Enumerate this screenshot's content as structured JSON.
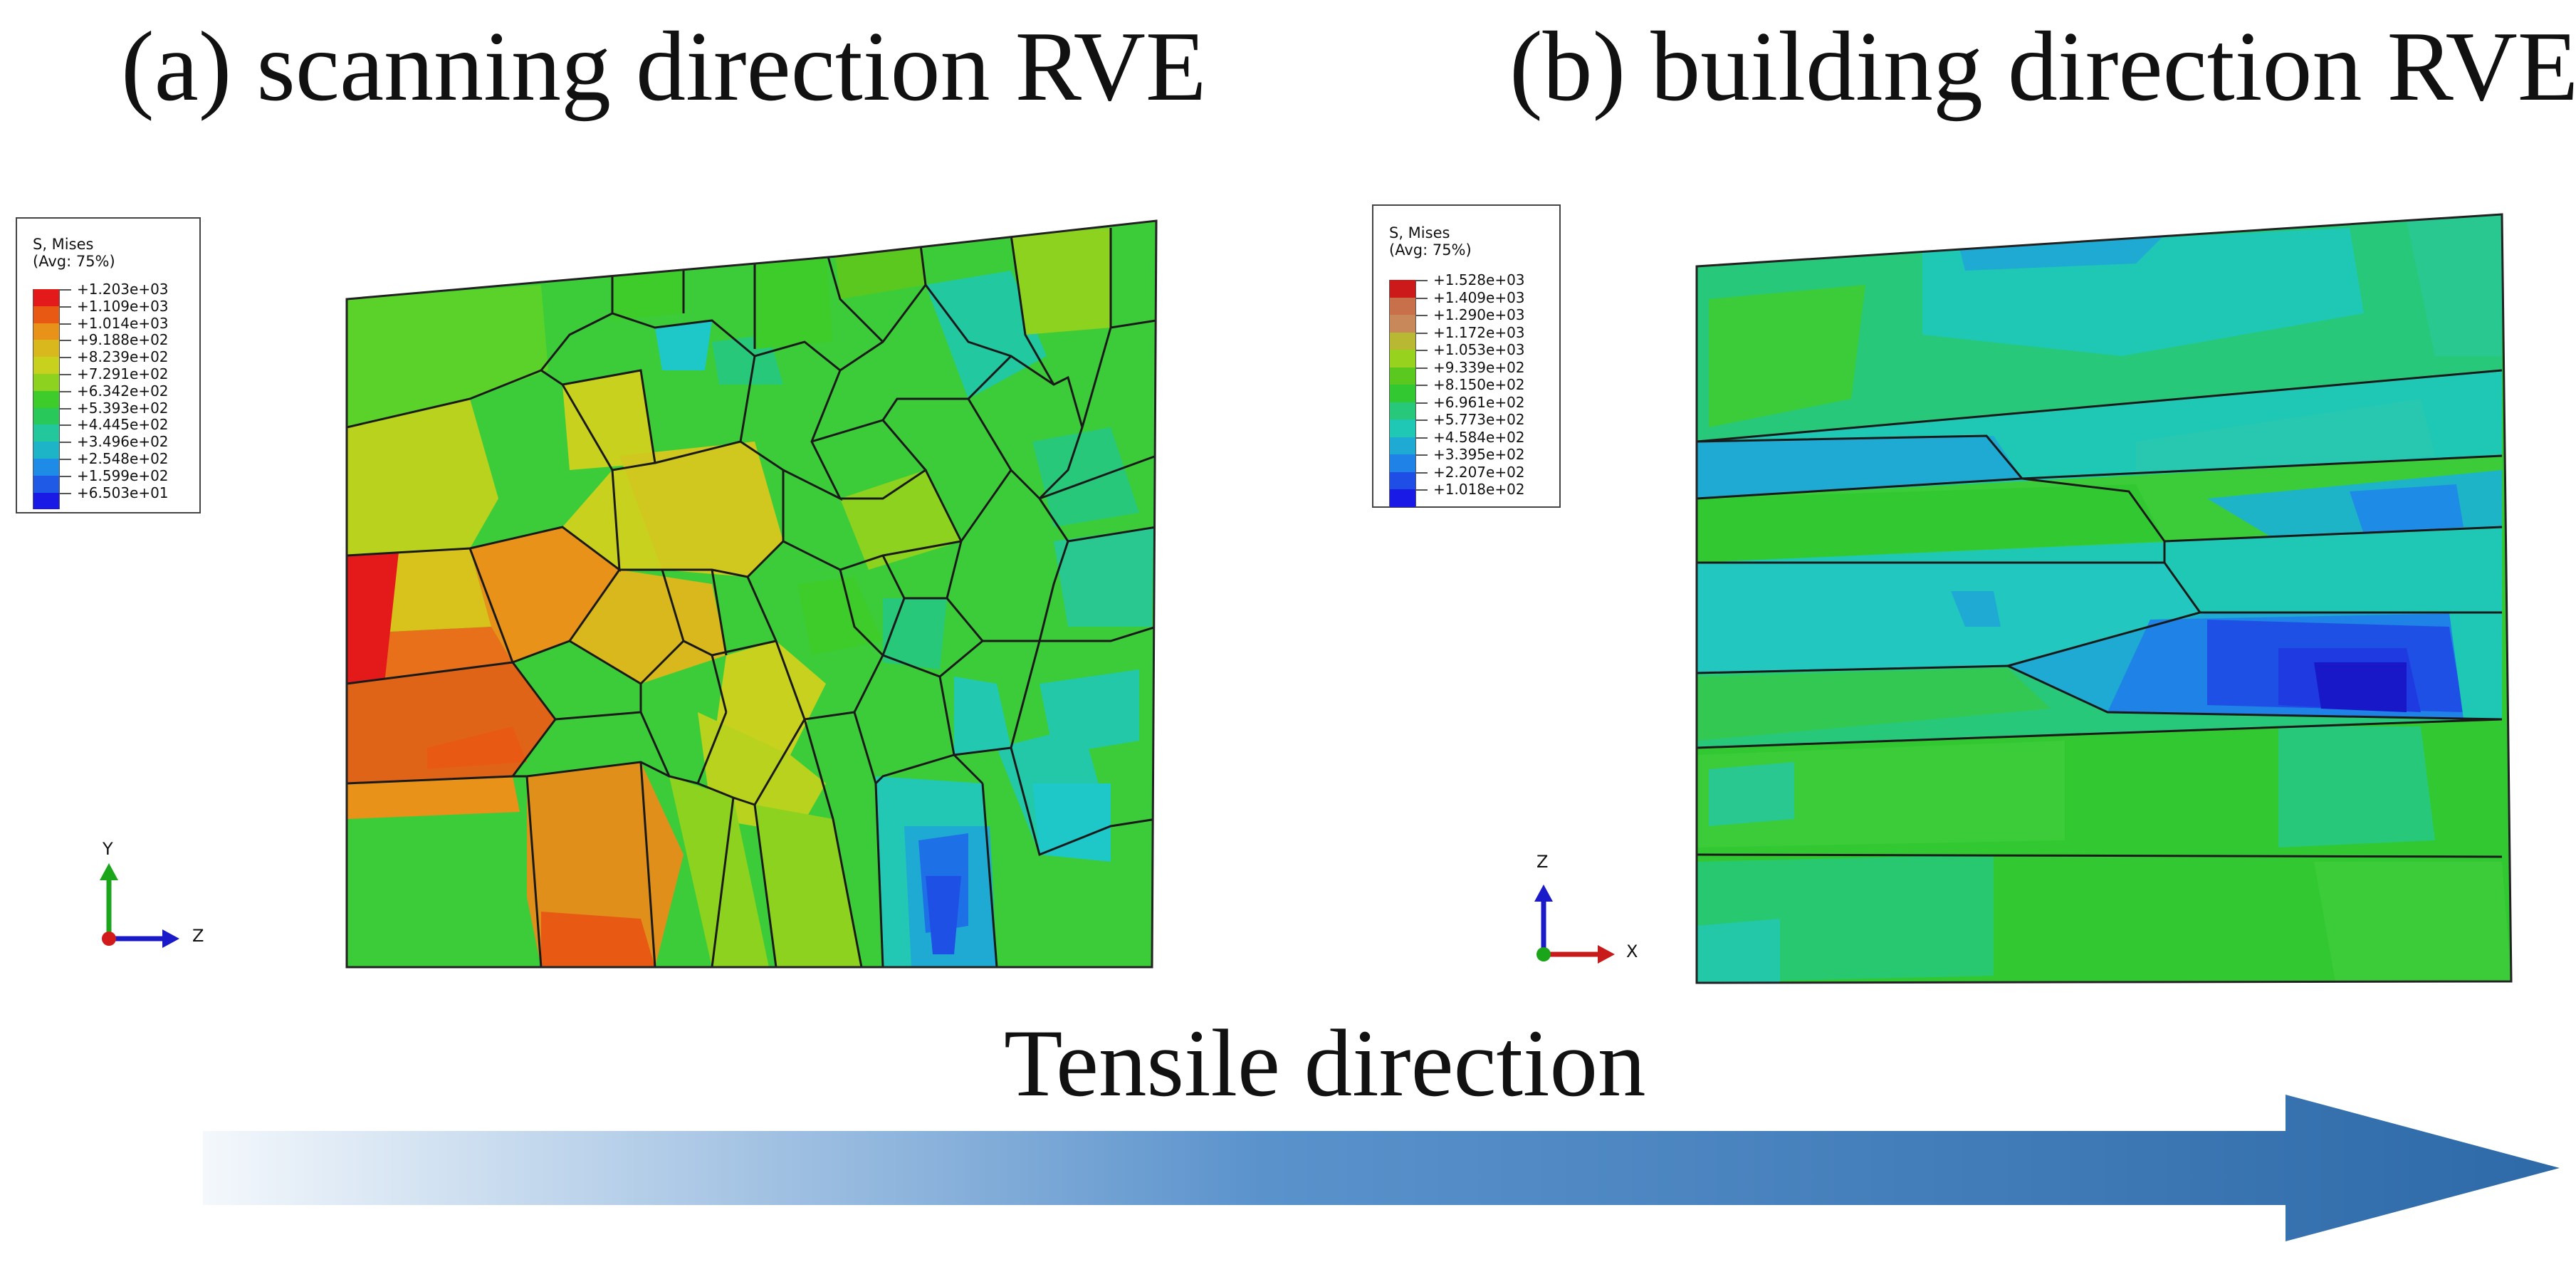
{
  "titles": {
    "a": "(a) scanning direction RVE",
    "b": "(b) building direction RVE"
  },
  "legends": {
    "a": {
      "title": "S, Mises",
      "subtitle": "(Avg: 75%)",
      "values": [
        "+1.203e+03",
        "+1.109e+03",
        "+1.014e+03",
        "+9.188e+02",
        "+8.239e+02",
        "+7.291e+02",
        "+6.342e+02",
        "+5.393e+02",
        "+4.445e+02",
        "+3.496e+02",
        "+2.548e+02",
        "+1.599e+02",
        "+6.503e+01"
      ]
    },
    "b": {
      "title": "S, Mises",
      "subtitle": "(Avg: 75%)",
      "values": [
        "+1.528e+03",
        "+1.409e+03",
        "+1.290e+03",
        "+1.172e+03",
        "+1.053e+03",
        "+9.339e+02",
        "+8.150e+02",
        "+6.961e+02",
        "+5.773e+02",
        "+4.584e+02",
        "+3.395e+02",
        "+2.207e+02",
        "+1.018e+02"
      ]
    }
  },
  "legend_colors": {
    "a": [
      "#e41a1a",
      "#e85a14",
      "#e8921a",
      "#d8b81c",
      "#c8d21e",
      "#8cd21e",
      "#3ecc2a",
      "#28c85a",
      "#22c89c",
      "#1eb4c8",
      "#1e8ce6",
      "#1e5ae6",
      "#1a1ae6"
    ],
    "b": [
      "#cc1a1a",
      "#c8704a",
      "#c8885a",
      "#b8b832",
      "#96d21e",
      "#5ac81e",
      "#32c832",
      "#28c87a",
      "#1ec8b4",
      "#1eaad2",
      "#1e82e6",
      "#1e4ee6",
      "#1a1ae6"
    ]
  },
  "axes": {
    "a": {
      "vertical": "Y",
      "horizontal": "Z"
    },
    "b": {
      "vertical": "Z",
      "horizontal": "X"
    }
  },
  "tensile": {
    "label": "Tensile direction",
    "gradient_start": "#f4f8fc",
    "gradient_end": "#2e6aa8"
  }
}
